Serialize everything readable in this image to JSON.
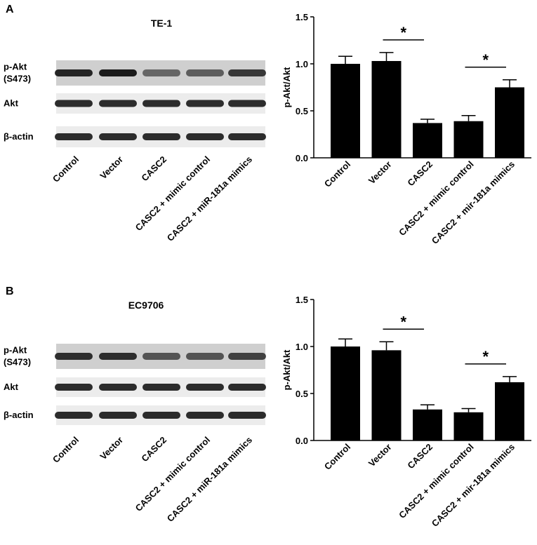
{
  "panels": [
    {
      "label": "A",
      "blot": {
        "title": "TE-1",
        "rows": [
          [
            "p-Akt",
            "(S473)"
          ],
          [
            "Akt"
          ],
          [
            "β-actin"
          ]
        ],
        "lanes": [
          "Control",
          "Vector",
          "CASC2",
          "CASC2 + mimic control",
          "CASC2 + miR-181a mimics"
        ]
      }
    },
    {
      "label": "B",
      "blot": {
        "title": "EC9706",
        "rows": [
          [
            "p-Akt",
            "(S473)"
          ],
          [
            "Akt"
          ],
          [
            "β-actin"
          ]
        ],
        "lanes": [
          "Control",
          "Vector",
          "CASC2",
          "CASC2 + mimic control",
          "CASC2 + miR-181a mimics"
        ]
      }
    }
  ],
  "chart_data": [
    {
      "type": "bar",
      "ylabel": "p-Akt/Akt",
      "categories": [
        "Control",
        "Vector",
        "CASC2",
        "CASC2 + mimic control",
        "CASC2 + mir-181a mimics"
      ],
      "values": [
        1.0,
        1.03,
        0.37,
        0.39,
        0.75
      ],
      "errors": [
        0.08,
        0.09,
        0.04,
        0.06,
        0.08
      ],
      "color": "#000000",
      "ylim": [
        0,
        1.5
      ],
      "yticks": [
        {
          "value": 0,
          "label": "0.0"
        },
        {
          "value": 0.5,
          "label": "0.5"
        },
        {
          "value": 1,
          "label": "1.0"
        },
        {
          "value": 1.5,
          "label": "1.5"
        }
      ],
      "annotations": [
        "*",
        "*"
      ]
    },
    {
      "type": "bar",
      "ylabel": "p-Akt/Akt",
      "categories": [
        "Control",
        "Vector",
        "CASC2",
        "CASC2 + mimic control",
        "CASC2 + mir-181a mimics"
      ],
      "values": [
        1.0,
        0.96,
        0.33,
        0.3,
        0.62
      ],
      "errors": [
        0.08,
        0.09,
        0.05,
        0.04,
        0.06
      ],
      "color": "#000000",
      "ylim": [
        0,
        1.5
      ],
      "yticks": [
        {
          "value": 0,
          "label": "0.0"
        },
        {
          "value": 0.5,
          "label": "0.5"
        },
        {
          "value": 1,
          "label": "1.0"
        },
        {
          "value": 1.5,
          "label": "1.5"
        }
      ],
      "annotations": [
        "*",
        "*"
      ]
    }
  ]
}
